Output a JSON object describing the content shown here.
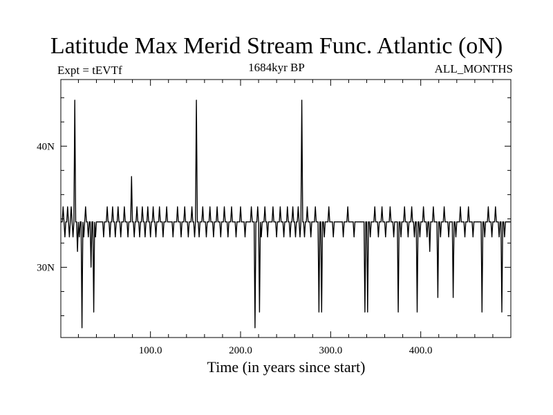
{
  "chart_data": {
    "type": "line",
    "title": "Latitude Max Merid Stream Func. Atlantic (oN)",
    "subtitle": "1684kyr BP",
    "left_note": "Expt = tEVTf",
    "right_note": "ALL_MONTHS",
    "xlabel": "Time (in years since start)",
    "ylabel": "",
    "xlim": [
      0.5,
      500
    ],
    "ylim": [
      24.2,
      45.5
    ],
    "x_ticks": [
      {
        "value": 100,
        "label": "100.0"
      },
      {
        "value": 200,
        "label": "200.0"
      },
      {
        "value": 300,
        "label": "300.0"
      },
      {
        "value": 400,
        "label": "400.0"
      }
    ],
    "y_ticks": [
      {
        "value": 30,
        "label": "30N"
      },
      {
        "value": 40,
        "label": "40N"
      }
    ],
    "grid": false,
    "series": [
      {
        "name": "",
        "color": "#000000",
        "baseline": 33.75,
        "low": 32.5,
        "high": 35.0,
        "spikes": [
          {
            "x": 3,
            "y": 35.0
          },
          {
            "x": 5,
            "y": 32.5
          },
          {
            "x": 8,
            "y": 35.0
          },
          {
            "x": 10,
            "y": 32.5
          },
          {
            "x": 12,
            "y": 35.0
          },
          {
            "x": 14,
            "y": 32.5
          },
          {
            "x": 16,
            "y": 43.8
          },
          {
            "x": 19,
            "y": 31.3
          },
          {
            "x": 21,
            "y": 32.5
          },
          {
            "x": 24,
            "y": 25.0
          },
          {
            "x": 26,
            "y": 32.5
          },
          {
            "x": 28,
            "y": 35.0
          },
          {
            "x": 31,
            "y": 32.5
          },
          {
            "x": 34,
            "y": 30.0
          },
          {
            "x": 37,
            "y": 26.3
          },
          {
            "x": 39,
            "y": 32.5
          },
          {
            "x": 44,
            "y": 33.75
          },
          {
            "x": 48,
            "y": 32.5
          },
          {
            "x": 52,
            "y": 35.0
          },
          {
            "x": 55,
            "y": 32.5
          },
          {
            "x": 58,
            "y": 35.0
          },
          {
            "x": 61,
            "y": 32.5
          },
          {
            "x": 64,
            "y": 35.0
          },
          {
            "x": 67,
            "y": 32.5
          },
          {
            "x": 71,
            "y": 35.0
          },
          {
            "x": 75,
            "y": 32.5
          },
          {
            "x": 79,
            "y": 37.5
          },
          {
            "x": 82,
            "y": 32.5
          },
          {
            "x": 85,
            "y": 35.0
          },
          {
            "x": 88,
            "y": 32.5
          },
          {
            "x": 91,
            "y": 35.0
          },
          {
            "x": 94,
            "y": 32.5
          },
          {
            "x": 97,
            "y": 35.0
          },
          {
            "x": 100,
            "y": 32.5
          },
          {
            "x": 103,
            "y": 35.0
          },
          {
            "x": 106,
            "y": 32.5
          },
          {
            "x": 110,
            "y": 35.0
          },
          {
            "x": 114,
            "y": 32.5
          },
          {
            "x": 118,
            "y": 35.0
          },
          {
            "x": 125,
            "y": 32.5
          },
          {
            "x": 130,
            "y": 35.0
          },
          {
            "x": 134,
            "y": 32.5
          },
          {
            "x": 138,
            "y": 35.0
          },
          {
            "x": 142,
            "y": 32.5
          },
          {
            "x": 146,
            "y": 35.0
          },
          {
            "x": 149,
            "y": 32.5
          },
          {
            "x": 151,
            "y": 43.8
          },
          {
            "x": 154,
            "y": 32.5
          },
          {
            "x": 158,
            "y": 35.0
          },
          {
            "x": 162,
            "y": 32.5
          },
          {
            "x": 166,
            "y": 35.0
          },
          {
            "x": 170,
            "y": 32.5
          },
          {
            "x": 174,
            "y": 35.0
          },
          {
            "x": 178,
            "y": 32.5
          },
          {
            "x": 182,
            "y": 35.0
          },
          {
            "x": 186,
            "y": 32.5
          },
          {
            "x": 190,
            "y": 35.0
          },
          {
            "x": 195,
            "y": 32.5
          },
          {
            "x": 200,
            "y": 35.0
          },
          {
            "x": 205,
            "y": 32.5
          },
          {
            "x": 212,
            "y": 35.0
          },
          {
            "x": 216,
            "y": 25.0
          },
          {
            "x": 219,
            "y": 35.0
          },
          {
            "x": 221,
            "y": 26.3
          },
          {
            "x": 223,
            "y": 32.5
          },
          {
            "x": 227,
            "y": 35.0
          },
          {
            "x": 230,
            "y": 32.5
          },
          {
            "x": 236,
            "y": 35.0
          },
          {
            "x": 240,
            "y": 32.5
          },
          {
            "x": 244,
            "y": 35.0
          },
          {
            "x": 248,
            "y": 32.5
          },
          {
            "x": 252,
            "y": 35.0
          },
          {
            "x": 255,
            "y": 32.5
          },
          {
            "x": 258,
            "y": 35.0
          },
          {
            "x": 261,
            "y": 32.5
          },
          {
            "x": 264,
            "y": 35.0
          },
          {
            "x": 266,
            "y": 32.5
          },
          {
            "x": 268,
            "y": 43.8
          },
          {
            "x": 271,
            "y": 32.5
          },
          {
            "x": 274,
            "y": 35.0
          },
          {
            "x": 278,
            "y": 32.5
          },
          {
            "x": 283,
            "y": 35.0
          },
          {
            "x": 287,
            "y": 26.3
          },
          {
            "x": 290,
            "y": 26.3
          },
          {
            "x": 293,
            "y": 32.5
          },
          {
            "x": 298,
            "y": 35.0
          },
          {
            "x": 303,
            "y": 32.5
          },
          {
            "x": 308,
            "y": 33.75
          },
          {
            "x": 314,
            "y": 32.5
          },
          {
            "x": 319,
            "y": 35.0
          },
          {
            "x": 326,
            "y": 32.5
          },
          {
            "x": 333,
            "y": 33.75
          },
          {
            "x": 338,
            "y": 26.3
          },
          {
            "x": 341,
            "y": 26.3
          },
          {
            "x": 344,
            "y": 32.5
          },
          {
            "x": 349,
            "y": 35.0
          },
          {
            "x": 353,
            "y": 32.5
          },
          {
            "x": 357,
            "y": 35.0
          },
          {
            "x": 361,
            "y": 32.5
          },
          {
            "x": 366,
            "y": 35.0
          },
          {
            "x": 370,
            "y": 32.5
          },
          {
            "x": 375,
            "y": 26.3
          },
          {
            "x": 378,
            "y": 32.5
          },
          {
            "x": 382,
            "y": 35.0
          },
          {
            "x": 386,
            "y": 32.5
          },
          {
            "x": 390,
            "y": 35.0
          },
          {
            "x": 393,
            "y": 32.5
          },
          {
            "x": 396,
            "y": 26.3
          },
          {
            "x": 399,
            "y": 32.5
          },
          {
            "x": 403,
            "y": 35.0
          },
          {
            "x": 407,
            "y": 32.5
          },
          {
            "x": 410,
            "y": 31.3
          },
          {
            "x": 414,
            "y": 35.0
          },
          {
            "x": 419,
            "y": 27.5
          },
          {
            "x": 422,
            "y": 32.5
          },
          {
            "x": 426,
            "y": 35.0
          },
          {
            "x": 431,
            "y": 32.5
          },
          {
            "x": 436,
            "y": 27.5
          },
          {
            "x": 439,
            "y": 32.5
          },
          {
            "x": 444,
            "y": 35.0
          },
          {
            "x": 449,
            "y": 32.5
          },
          {
            "x": 453,
            "y": 35.0
          },
          {
            "x": 458,
            "y": 32.5
          },
          {
            "x": 463,
            "y": 33.75
          },
          {
            "x": 468,
            "y": 26.3
          },
          {
            "x": 471,
            "y": 32.5
          },
          {
            "x": 475,
            "y": 35.0
          },
          {
            "x": 479,
            "y": 32.5
          },
          {
            "x": 483,
            "y": 35.0
          },
          {
            "x": 487,
            "y": 32.5
          },
          {
            "x": 490,
            "y": 26.3
          },
          {
            "x": 493,
            "y": 32.5
          },
          {
            "x": 497,
            "y": 33.75
          }
        ]
      }
    ]
  }
}
